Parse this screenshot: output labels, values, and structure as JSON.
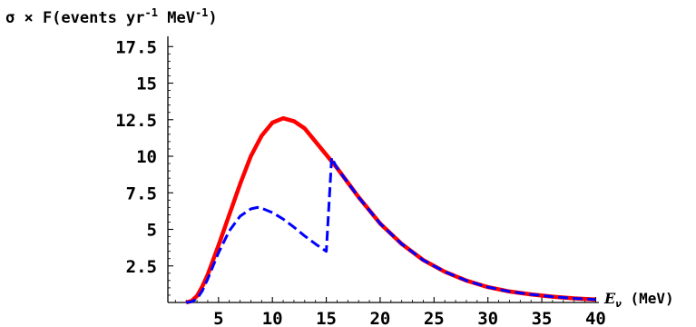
{
  "chart_data": {
    "type": "line",
    "ylabel_main": "σ × F(events yr",
    "ylabel_exp1": "-1",
    "ylabel_mid": " MeV",
    "ylabel_exp2": "-1",
    "ylabel_end": ")",
    "xlabel_sym": "E",
    "xlabel_sub": "ν",
    "xlabel_unit": " (MeV)",
    "xlim": [
      0.3,
      40.3
    ],
    "ylim": [
      0,
      18.2
    ],
    "xticks": [
      5,
      10,
      15,
      20,
      25,
      30,
      35,
      40
    ],
    "yticks": [
      2.5,
      5,
      7.5,
      10,
      12.5,
      15,
      17.5
    ],
    "xtick_labels": [
      "5",
      "10",
      "15",
      "20",
      "25",
      "30",
      "35",
      "40"
    ],
    "ytick_labels": [
      "2.5",
      "5",
      "7.5",
      "10",
      "12.5",
      "15",
      "17.5"
    ],
    "series": [
      {
        "style": "solid",
        "color": "#ff0000",
        "x": [
          2,
          2.5,
          3,
          3.5,
          4,
          5,
          6,
          7,
          8,
          9,
          10,
          11,
          12,
          13,
          14,
          15,
          16,
          17,
          18,
          19,
          20,
          22,
          24,
          26,
          28,
          30,
          32,
          34,
          36,
          38,
          40
        ],
        "y": [
          0,
          0.1,
          0.45,
          1.1,
          1.9,
          3.9,
          6.0,
          8.1,
          10.0,
          11.4,
          12.3,
          12.6,
          12.4,
          11.9,
          11.0,
          10.1,
          9.2,
          8.2,
          7.2,
          6.3,
          5.4,
          4.0,
          2.9,
          2.1,
          1.5,
          1.05,
          0.75,
          0.55,
          0.4,
          0.28,
          0.2
        ]
      },
      {
        "style": "dashed",
        "color": "#0000ff",
        "x": [
          2,
          2.5,
          3,
          3.5,
          4,
          5,
          6,
          7,
          8,
          8.6,
          9,
          10,
          11,
          12,
          13,
          14,
          15,
          15.5,
          16,
          17,
          18,
          19,
          20,
          22,
          24,
          26,
          28,
          30,
          32,
          34,
          36,
          38,
          40
        ],
        "y": [
          0,
          0.05,
          0.25,
          0.8,
          1.6,
          3.4,
          4.9,
          5.9,
          6.4,
          6.5,
          6.45,
          6.15,
          5.7,
          5.15,
          4.55,
          4.0,
          3.5,
          9.9,
          9.2,
          8.2,
          7.2,
          6.3,
          5.4,
          4.0,
          2.9,
          2.1,
          1.5,
          1.05,
          0.75,
          0.55,
          0.4,
          0.28,
          0.2
        ]
      }
    ]
  }
}
